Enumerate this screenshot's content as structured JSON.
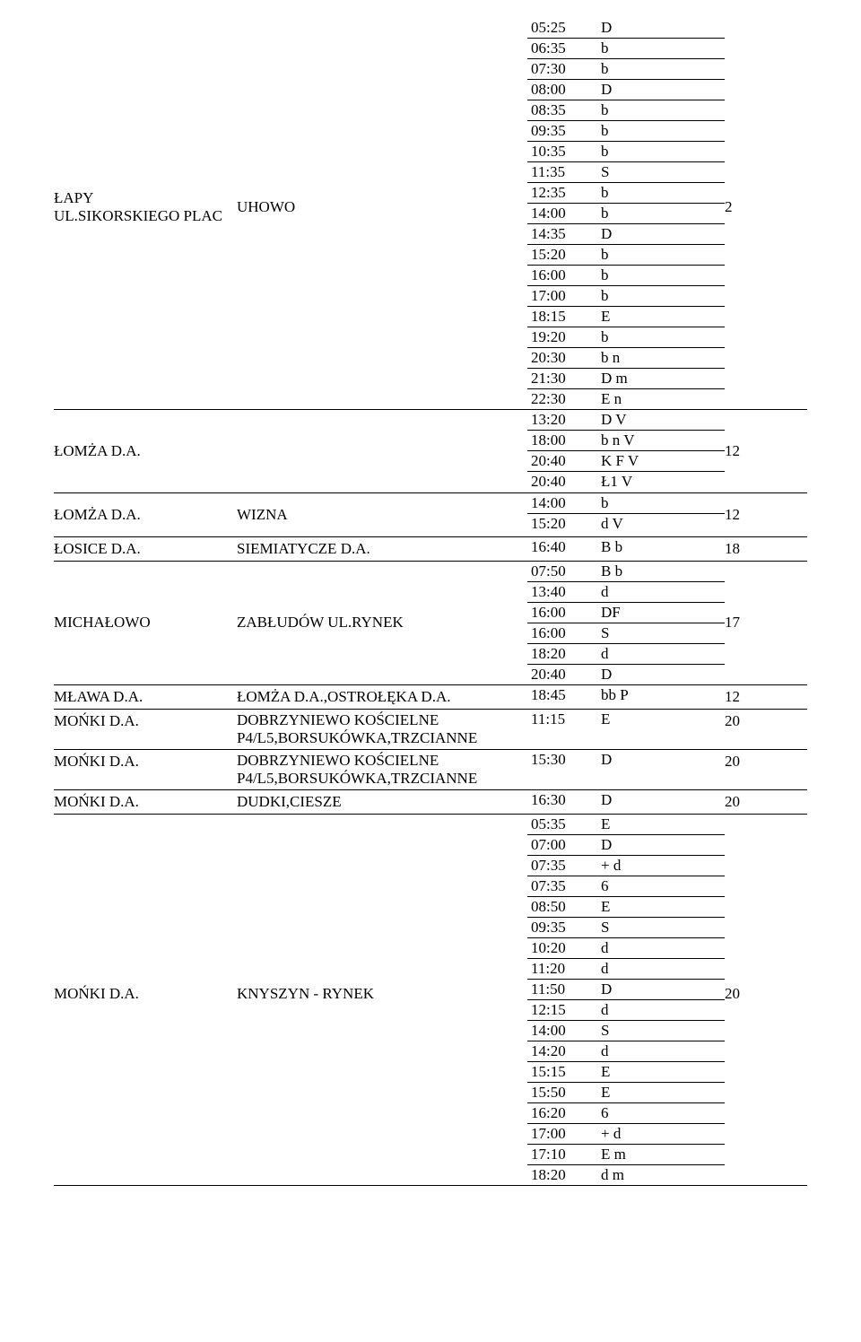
{
  "rows": [
    {
      "origin": "ŁAPY\nUL.SIKORSKIEGO  PLAC",
      "dest": "UHOWO",
      "ref": "2",
      "times": [
        {
          "t": "05:25",
          "c": "D"
        },
        {
          "t": "06:35",
          "c": "b"
        },
        {
          "t": "07:30",
          "c": "b"
        },
        {
          "t": "08:00",
          "c": "D"
        },
        {
          "t": "08:35",
          "c": "b"
        },
        {
          "t": "09:35",
          "c": "b"
        },
        {
          "t": "10:35",
          "c": "b"
        },
        {
          "t": "11:35",
          "c": "S"
        },
        {
          "t": "12:35",
          "c": "b"
        },
        {
          "t": "14:00",
          "c": "b"
        },
        {
          "t": "14:35",
          "c": "D"
        },
        {
          "t": "15:20",
          "c": "b"
        },
        {
          "t": "16:00",
          "c": "b"
        },
        {
          "t": "17:00",
          "c": "b"
        },
        {
          "t": "18:15",
          "c": "E"
        },
        {
          "t": "19:20",
          "c": "b"
        },
        {
          "t": "20:30",
          "c": "b n"
        },
        {
          "t": "21:30",
          "c": "D m"
        },
        {
          "t": "22:30",
          "c": "E n"
        }
      ]
    },
    {
      "origin": "ŁOMŻA D.A.",
      "dest": "",
      "ref": "12",
      "times": [
        {
          "t": "13:20",
          "c": "D V"
        },
        {
          "t": "18:00",
          "c": "b n V"
        },
        {
          "t": "20:40",
          "c": "K F V"
        },
        {
          "t": "20:40",
          "c": "Ł1 V"
        }
      ]
    },
    {
      "origin": "ŁOMŻA D.A.",
      "dest": "WIZNA",
      "ref": "12",
      "times": [
        {
          "t": "14:00",
          "c": "b"
        },
        {
          "t": "15:20",
          "c": "d V"
        }
      ]
    },
    {
      "origin": "ŁOSICE D.A.",
      "dest": "SIEMIATYCZE D.A.",
      "ref": "18",
      "single": {
        "t": "16:40",
        "c": "B b"
      }
    },
    {
      "origin": "MICHAŁOWO",
      "dest": "ZABŁUDÓW UL.RYNEK",
      "ref": "17",
      "times": [
        {
          "t": "07:50",
          "c": "B b"
        },
        {
          "t": "13:40",
          "c": "d"
        },
        {
          "t": "16:00",
          "c": "DF"
        },
        {
          "t": "16:00",
          "c": "S"
        },
        {
          "t": "18:20",
          "c": "d"
        },
        {
          "t": "20:40",
          "c": "D"
        }
      ]
    },
    {
      "origin": "MŁAWA D.A.",
      "dest": "ŁOMŻA D.A.,OSTROŁĘKA D.A.",
      "ref": "12",
      "single": {
        "t": "18:45",
        "c": "bb P"
      }
    },
    {
      "origin": "MOŃKI D.A.",
      "dest": "DOBRZYNIEWO KOŚCIELNE P4/L5,BORSUKÓWKA,TRZCIANNE",
      "ref": "20",
      "single": {
        "t": "11:15",
        "c": "E"
      }
    },
    {
      "origin": "MOŃKI D.A.",
      "dest": "DOBRZYNIEWO KOŚCIELNE P4/L5,BORSUKÓWKA,TRZCIANNE",
      "ref": "20",
      "single": {
        "t": "15:30",
        "c": "D"
      }
    },
    {
      "origin": "MOŃKI D.A.",
      "dest": "DUDKI,CIESZE",
      "ref": "20",
      "single": {
        "t": "16:30",
        "c": "D"
      }
    },
    {
      "origin": "MOŃKI D.A.",
      "dest": "KNYSZYN - RYNEK",
      "ref": "20",
      "times": [
        {
          "t": "05:35",
          "c": "E"
        },
        {
          "t": "07:00",
          "c": "D"
        },
        {
          "t": "07:35",
          "c": "+ d"
        },
        {
          "t": "07:35",
          "c": "6"
        },
        {
          "t": "08:50",
          "c": "E"
        },
        {
          "t": "09:35",
          "c": "S"
        },
        {
          "t": "10:20",
          "c": "d"
        },
        {
          "t": "11:20",
          "c": "d"
        },
        {
          "t": "11:50",
          "c": "D"
        },
        {
          "t": "12:15",
          "c": "d"
        },
        {
          "t": "14:00",
          "c": "S"
        },
        {
          "t": "14:20",
          "c": "d"
        },
        {
          "t": "15:15",
          "c": "E"
        },
        {
          "t": "15:50",
          "c": "E"
        },
        {
          "t": "16:20",
          "c": "6"
        },
        {
          "t": "17:00",
          "c": "+ d"
        },
        {
          "t": "17:10",
          "c": "E m"
        },
        {
          "t": "18:20",
          "c": "d m"
        }
      ]
    }
  ]
}
